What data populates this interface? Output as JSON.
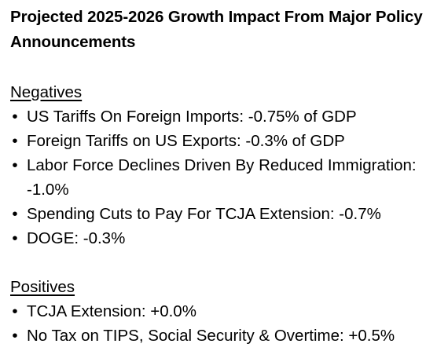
{
  "title": "Projected 2025-2026 Growth Impact From Major Policy Announcements",
  "negatives": {
    "heading": "Negatives",
    "items": [
      {
        "text": "US Tariffs On Foreign Imports: -0.75% of GDP"
      },
      {
        "text": "Foreign Tariffs on US Exports: -0.3% of GDP"
      },
      {
        "text": "Labor Force Declines Driven By Reduced Immigration: -1.0%"
      },
      {
        "text": "Spending Cuts to Pay For TCJA Extension: -0.7%"
      },
      {
        "text": "DOGE: -0.3%"
      }
    ]
  },
  "positives": {
    "heading": "Positives",
    "items": [
      {
        "text": "TCJA Extension: +0.0%"
      },
      {
        "text": "No Tax on TIPS, Social Security & Overtime: +0.5%"
      }
    ]
  },
  "bullet_glyph": "•"
}
